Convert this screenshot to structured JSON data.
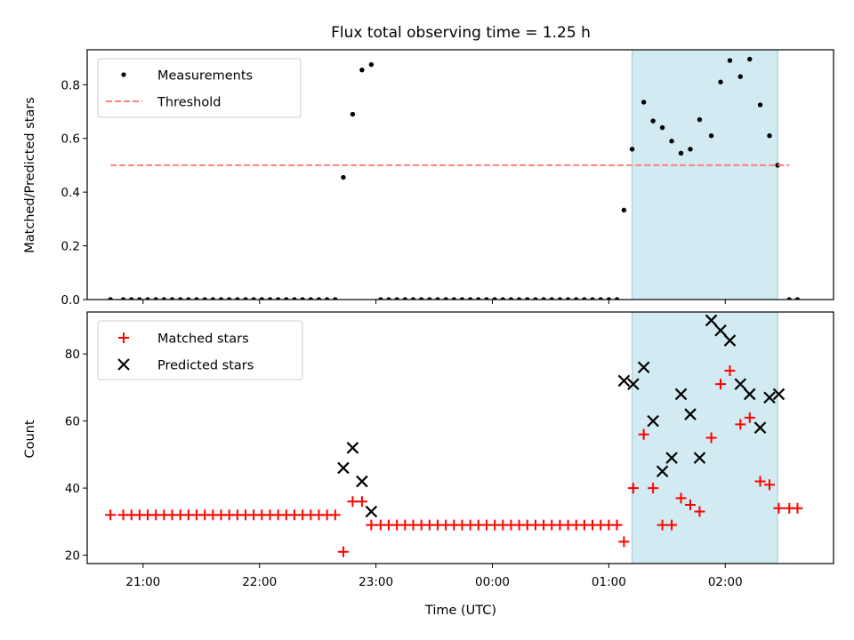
{
  "chart_data": {
    "title": "Flux total observing time = 1.25 h",
    "xlabel": "Time (UTC)",
    "x_ticks": [
      "21:00",
      "22:00",
      "23:00",
      "00:00",
      "01:00",
      "02:00"
    ],
    "x_tick_hours": [
      21,
      22,
      23,
      24,
      25,
      26
    ],
    "xlim_hours": [
      20.52,
      26.93
    ],
    "shaded_span_hours": [
      25.2,
      26.45
    ],
    "shade_color": "#add8e6",
    "panels": [
      {
        "type": "scatter",
        "ylabel": "Matched/Predicted stars",
        "ylim": [
          0,
          0.93
        ],
        "yticks": [
          0.0,
          0.2,
          0.4,
          0.6,
          0.8
        ],
        "ytick_labels": [
          "0.0",
          "0.2",
          "0.4",
          "0.6",
          "0.8"
        ],
        "legend_position": "upper-left",
        "series": [
          {
            "name": "Measurements",
            "marker": "dot",
            "color": "#000000",
            "x_hours": [
              20.72,
              20.83,
              20.9,
              20.97,
              21.04,
              21.11,
              21.18,
              21.25,
              21.32,
              21.39,
              21.46,
              21.53,
              21.6,
              21.67,
              21.74,
              21.81,
              21.88,
              21.95,
              22.02,
              22.09,
              22.16,
              22.23,
              22.3,
              22.37,
              22.44,
              22.51,
              22.58,
              22.65,
              22.72,
              22.8,
              22.88,
              22.96,
              23.04,
              23.11,
              23.18,
              23.25,
              23.32,
              23.39,
              23.46,
              23.53,
              23.6,
              23.67,
              23.74,
              23.81,
              23.88,
              23.95,
              24.02,
              24.09,
              24.16,
              24.23,
              24.3,
              24.37,
              24.44,
              24.51,
              24.58,
              24.65,
              24.72,
              24.79,
              24.86,
              24.93,
              25.0,
              25.07,
              25.13,
              25.2,
              25.3,
              25.38,
              25.46,
              25.54,
              25.62,
              25.7,
              25.78,
              25.88,
              25.96,
              26.04,
              26.13,
              26.21,
              26.3,
              26.38,
              26.45,
              26.55,
              26.62
            ],
            "y": [
              0,
              0,
              0,
              0,
              0,
              0,
              0,
              0,
              0,
              0,
              0,
              0,
              0,
              0,
              0,
              0,
              0,
              0,
              0,
              0,
              0,
              0,
              0,
              0,
              0,
              0,
              0,
              0,
              0.455,
              0.69,
              0.855,
              0.875,
              0,
              0,
              0,
              0,
              0,
              0,
              0,
              0,
              0,
              0,
              0,
              0,
              0,
              0,
              0,
              0,
              0,
              0,
              0,
              0,
              0,
              0,
              0,
              0,
              0,
              0,
              0,
              0,
              0,
              0,
              0.333,
              0.56,
              0.735,
              0.665,
              0.64,
              0.59,
              0.545,
              0.56,
              0.67,
              0.61,
              0.81,
              0.89,
              0.83,
              0.895,
              0.725,
              0.61,
              0.5,
              0,
              0
            ]
          },
          {
            "name": "Threshold",
            "type": "line",
            "style": "dashed",
            "color": "#ff7f7f",
            "x_hours": [
              20.72,
              26.55
            ],
            "y": [
              0.5,
              0.5
            ]
          }
        ]
      },
      {
        "type": "scatter",
        "ylabel": "Count",
        "ylim": [
          17.5,
          92.5
        ],
        "yticks": [
          20,
          40,
          60,
          80
        ],
        "ytick_labels": [
          "20",
          "40",
          "60",
          "80"
        ],
        "legend_position": "upper-left",
        "series": [
          {
            "name": "Matched stars",
            "marker": "plus",
            "color": "#ff0000",
            "x_hours": [
              20.72,
              20.83,
              20.9,
              20.97,
              21.04,
              21.11,
              21.18,
              21.25,
              21.32,
              21.39,
              21.46,
              21.53,
              21.6,
              21.67,
              21.74,
              21.81,
              21.88,
              21.95,
              22.02,
              22.09,
              22.16,
              22.23,
              22.3,
              22.37,
              22.44,
              22.51,
              22.58,
              22.65,
              22.72,
              22.8,
              22.88,
              22.96,
              23.04,
              23.11,
              23.18,
              23.25,
              23.32,
              23.39,
              23.46,
              23.53,
              23.6,
              23.67,
              23.74,
              23.81,
              23.88,
              23.95,
              24.02,
              24.09,
              24.16,
              24.23,
              24.3,
              24.37,
              24.44,
              24.51,
              24.58,
              24.65,
              24.72,
              24.79,
              24.86,
              24.93,
              25.0,
              25.07,
              25.13,
              25.21,
              25.3,
              25.38,
              25.46,
              25.54,
              25.62,
              25.7,
              25.78,
              25.88,
              25.96,
              26.04,
              26.13,
              26.21,
              26.3,
              26.38,
              26.46,
              26.55,
              26.62
            ],
            "y": [
              32,
              32,
              32,
              32,
              32,
              32,
              32,
              32,
              32,
              32,
              32,
              32,
              32,
              32,
              32,
              32,
              32,
              32,
              32,
              32,
              32,
              32,
              32,
              32,
              32,
              32,
              32,
              32,
              21,
              36,
              36,
              29,
              29,
              29,
              29,
              29,
              29,
              29,
              29,
              29,
              29,
              29,
              29,
              29,
              29,
              29,
              29,
              29,
              29,
              29,
              29,
              29,
              29,
              29,
              29,
              29,
              29,
              29,
              29,
              29,
              29,
              29,
              24,
              40,
              56,
              40,
              29,
              29,
              37,
              35,
              33,
              55,
              71,
              75,
              59,
              61,
              42,
              41,
              34,
              34,
              34
            ]
          },
          {
            "name": "Predicted stars",
            "marker": "x",
            "color": "#000000",
            "x_hours": [
              22.72,
              22.8,
              22.88,
              22.96,
              25.13,
              25.21,
              25.3,
              25.38,
              25.46,
              25.54,
              25.62,
              25.7,
              25.78,
              25.88,
              25.96,
              26.04,
              26.13,
              26.21,
              26.3,
              26.38,
              26.46
            ],
            "y": [
              46,
              52,
              42,
              33,
              72,
              71,
              76,
              60,
              45,
              49,
              68,
              62,
              49,
              90,
              87,
              84,
              71,
              68,
              58,
              67,
              68
            ]
          }
        ]
      }
    ]
  }
}
